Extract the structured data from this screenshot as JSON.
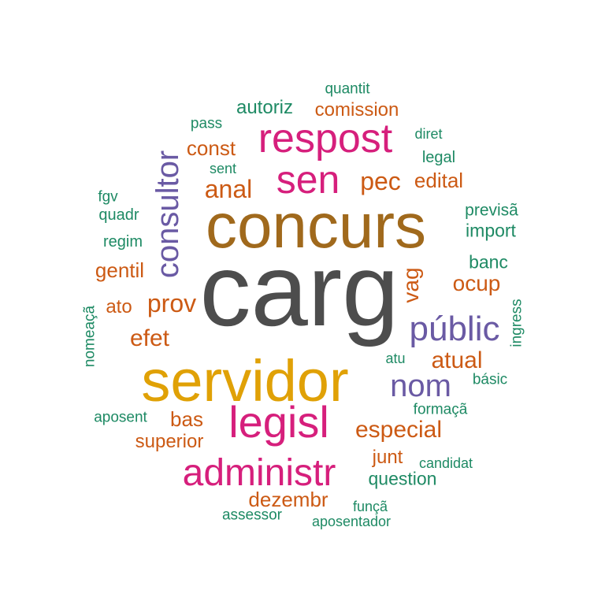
{
  "colors": {
    "dark_gray": "#4d4d4d",
    "brown": "#a0691c",
    "gold": "#e0a106",
    "magenta": "#d61f7c",
    "purple": "#6a5aa4",
    "orange": "#cc5a14",
    "green": "#1e8a64"
  },
  "words": [
    {
      "text": "carg",
      "color": "dark_gray"
    },
    {
      "text": "concurs",
      "color": "brown"
    },
    {
      "text": "servidor",
      "color": "gold"
    },
    {
      "text": "respost",
      "color": "magenta"
    },
    {
      "text": "sen",
      "color": "magenta"
    },
    {
      "text": "legisl",
      "color": "magenta"
    },
    {
      "text": "administr",
      "color": "magenta"
    },
    {
      "text": "consultor",
      "color": "purple"
    },
    {
      "text": "públic",
      "color": "purple"
    },
    {
      "text": "nom",
      "color": "purple"
    },
    {
      "text": "quantit",
      "color": "green"
    },
    {
      "text": "autoriz",
      "color": "green"
    },
    {
      "text": "comission",
      "color": "orange"
    },
    {
      "text": "pass",
      "color": "green"
    },
    {
      "text": "diret",
      "color": "green"
    },
    {
      "text": "const",
      "color": "orange"
    },
    {
      "text": "legal",
      "color": "green"
    },
    {
      "text": "sent",
      "color": "green"
    },
    {
      "text": "anal",
      "color": "orange"
    },
    {
      "text": "pec",
      "color": "orange"
    },
    {
      "text": "edital",
      "color": "orange"
    },
    {
      "text": "fgv",
      "color": "green"
    },
    {
      "text": "quadr",
      "color": "green"
    },
    {
      "text": "previsã",
      "color": "green"
    },
    {
      "text": "import",
      "color": "green"
    },
    {
      "text": "regim",
      "color": "green"
    },
    {
      "text": "banc",
      "color": "green"
    },
    {
      "text": "gentil",
      "color": "orange"
    },
    {
      "text": "vag",
      "color": "orange"
    },
    {
      "text": "ocup",
      "color": "orange"
    },
    {
      "text": "ato",
      "color": "orange"
    },
    {
      "text": "prov",
      "color": "orange"
    },
    {
      "text": "nomeaçã",
      "color": "green"
    },
    {
      "text": "ingress",
      "color": "green"
    },
    {
      "text": "efet",
      "color": "orange"
    },
    {
      "text": "atu",
      "color": "green"
    },
    {
      "text": "atual",
      "color": "orange"
    },
    {
      "text": "básic",
      "color": "green"
    },
    {
      "text": "aposent",
      "color": "green"
    },
    {
      "text": "formaçã",
      "color": "green"
    },
    {
      "text": "bas",
      "color": "orange"
    },
    {
      "text": "especial",
      "color": "orange"
    },
    {
      "text": "superior",
      "color": "orange"
    },
    {
      "text": "junt",
      "color": "orange"
    },
    {
      "text": "candidat",
      "color": "green"
    },
    {
      "text": "question",
      "color": "green"
    },
    {
      "text": "dezembr",
      "color": "orange"
    },
    {
      "text": "funçã",
      "color": "green"
    },
    {
      "text": "assessor",
      "color": "green"
    },
    {
      "text": "aposentador",
      "color": "green"
    }
  ]
}
